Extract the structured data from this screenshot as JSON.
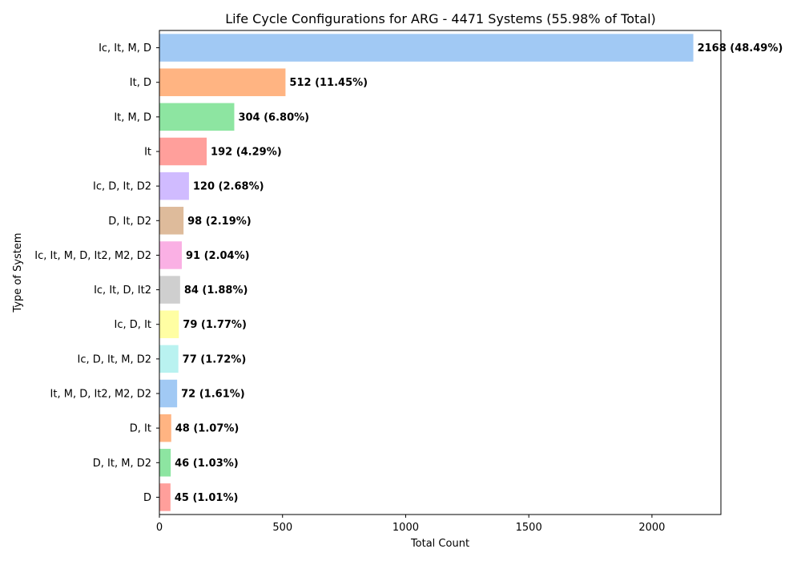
{
  "chart_data": {
    "type": "bar",
    "orientation": "horizontal",
    "title": "Life Cycle Configurations for ARG - 4471 Systems (55.98% of Total)",
    "xlabel": "Total Count",
    "ylabel": "Type of System",
    "xlim": [
      0,
      2280
    ],
    "xticks": [
      0,
      500,
      1000,
      1500,
      2000
    ],
    "grid": false,
    "categories": [
      "Ic, It, M, D",
      "It, D",
      "It, M, D",
      "It",
      "Ic, D, It, D2",
      "D, It, D2",
      "Ic, It, M, D, It2, M2, D2",
      "Ic, It, D, It2",
      "Ic, D, It",
      "Ic, D, It, M, D2",
      "It, M, D, It2, M2, D2",
      "D, It",
      "D, It, M, D2",
      "D"
    ],
    "values": [
      2168,
      512,
      304,
      192,
      120,
      98,
      91,
      84,
      79,
      77,
      72,
      48,
      46,
      45
    ],
    "data_labels": [
      "2168 (48.49%)",
      "512 (11.45%)",
      "304 (6.80%)",
      "192 (4.29%)",
      "120 (2.68%)",
      "98 (2.19%)",
      "91 (2.04%)",
      "84 (1.88%)",
      "79 (1.77%)",
      "77 (1.72%)",
      "72 (1.61%)",
      "48 (1.07%)",
      "46 (1.03%)",
      "45 (1.01%)"
    ],
    "colors": [
      "#a1c9f4",
      "#ffb482",
      "#8de5a1",
      "#ff9f9b",
      "#d0bbff",
      "#debb9b",
      "#fab0e4",
      "#cfcfcf",
      "#fffea3",
      "#b9f2f0",
      "#a1c9f4",
      "#ffb482",
      "#8de5a1",
      "#ff9f9b"
    ]
  }
}
